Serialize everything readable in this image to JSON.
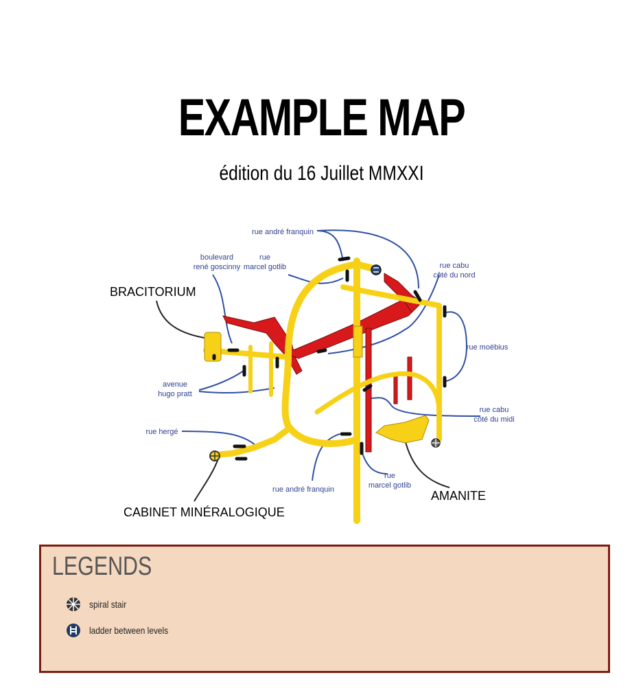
{
  "header": {
    "title": "EXAMPLE MAP",
    "subtitle": "édition du 16 Juillet MMXXI"
  },
  "places": {
    "bracitorium": "BRACITORIUM",
    "cabinet": "CABINET MINÉRALOGIQUE",
    "amanite": "AMANITE"
  },
  "streets": {
    "franquin_top": "rue andré franquin",
    "goscinny": [
      "boulevard",
      "rené goscinny"
    ],
    "gotlib_top": [
      "rue",
      "marcel gotlib"
    ],
    "cabu_nord": [
      "rue cabu",
      "côté du nord"
    ],
    "moebius": "rue moëbius",
    "hugo_pratt": [
      "avenue",
      "hugo pratt"
    ],
    "cabu_midi": [
      "rue cabu",
      "côté du midi"
    ],
    "herge": "rue hergé",
    "franquin_bottom": "rue andré franquin",
    "gotlib_bottom": [
      "rue",
      "marcel gotlib"
    ]
  },
  "legend": {
    "title": "LEGENDS",
    "items": [
      {
        "icon": "spiral-stair-icon",
        "label": "spiral stair"
      },
      {
        "icon": "ladder-icon",
        "label": "ladder between levels"
      }
    ]
  },
  "colors": {
    "yellow_tunnel": "#f7d117",
    "red_tunnel": "#d7191c",
    "street_line": "#2e4fa3",
    "legend_bg": "#f5d8c0",
    "legend_border": "#7c1d12"
  }
}
